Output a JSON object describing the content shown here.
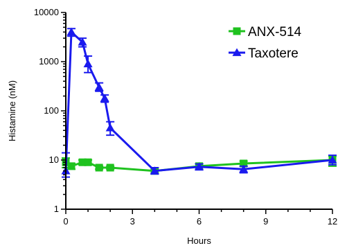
{
  "chart_data": {
    "type": "line",
    "xlabel": "Hours",
    "ylabel": "Histamine (nM)",
    "xlim": [
      0,
      12
    ],
    "ylim": [
      1,
      10000
    ],
    "yscale": "log",
    "xticks": [
      0,
      3,
      6,
      9,
      12
    ],
    "xtick_labels": [
      "0",
      "3",
      "6",
      "9",
      "12"
    ],
    "yticks": [
      1,
      10,
      100,
      1000,
      10000
    ],
    "ytick_labels": [
      "1",
      "10",
      "100",
      "1000",
      "10000"
    ],
    "grid": false,
    "legend_position": "top-right",
    "series": [
      {
        "name": "ANX-514",
        "color": "#1fc21f",
        "marker": "square",
        "points": [
          {
            "x": 0,
            "y": 9,
            "err_low": 7,
            "err_high": 11
          },
          {
            "x": 0.25,
            "y": 7.5,
            "err_low": 6.5,
            "err_high": 8.5
          },
          {
            "x": 0.75,
            "y": 9,
            "err_low": 8,
            "err_high": 10
          },
          {
            "x": 1,
            "y": 9,
            "err_low": 8,
            "err_high": 10
          },
          {
            "x": 1.5,
            "y": 7,
            "err_low": 6.5,
            "err_high": 7.5
          },
          {
            "x": 2,
            "y": 7,
            "err_low": 6.5,
            "err_high": 7.5
          },
          {
            "x": 4,
            "y": 6,
            "err_low": 5.5,
            "err_high": 6.5
          },
          {
            "x": 6,
            "y": 7.5,
            "err_low": 6.5,
            "err_high": 8.5
          },
          {
            "x": 8,
            "y": 8.5,
            "err_low": 7.5,
            "err_high": 9.5
          },
          {
            "x": 12,
            "y": 10,
            "err_low": 7.5,
            "err_high": 12
          }
        ]
      },
      {
        "name": "Taxotere",
        "color": "#1a1aee",
        "marker": "triangle",
        "points": [
          {
            "x": 0,
            "y": 6,
            "err_low": 4.5,
            "err_high": 14
          },
          {
            "x": 0.25,
            "y": 4000,
            "err_low": 3300,
            "err_high": 4700
          },
          {
            "x": 0.75,
            "y": 2500,
            "err_low": 2000,
            "err_high": 3000
          },
          {
            "x": 1,
            "y": 900,
            "err_low": 600,
            "err_high": 1300
          },
          {
            "x": 1.5,
            "y": 300,
            "err_low": 250,
            "err_high": 370
          },
          {
            "x": 1.75,
            "y": 180,
            "err_low": 150,
            "err_high": 210
          },
          {
            "x": 2,
            "y": 45,
            "err_low": 32,
            "err_high": 60
          },
          {
            "x": 4,
            "y": 6,
            "err_low": 5.2,
            "err_high": 7
          },
          {
            "x": 6,
            "y": 7.3,
            "err_low": 6.3,
            "err_high": 8.3
          },
          {
            "x": 8,
            "y": 6.5,
            "err_low": 5.5,
            "err_high": 7.5
          },
          {
            "x": 12,
            "y": 10,
            "err_low": 8,
            "err_high": 12.5
          }
        ]
      }
    ]
  }
}
